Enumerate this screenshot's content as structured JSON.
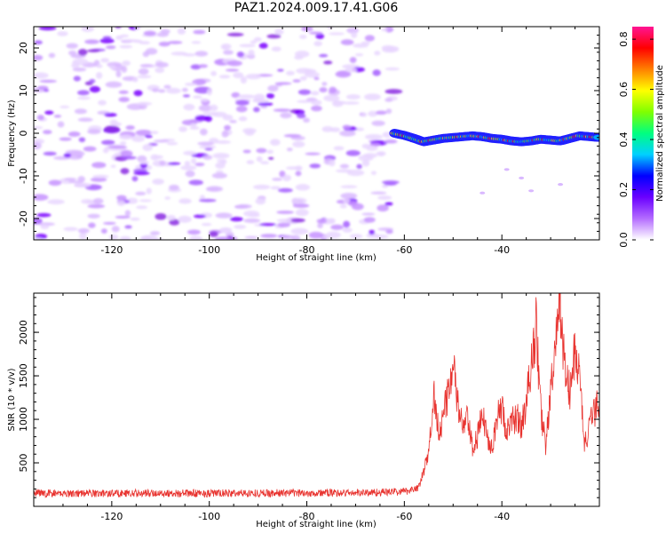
{
  "title": "PAZ1.2024.009.17.41.G06",
  "chart_data": [
    {
      "type": "heatmap",
      "name": "spectrogram",
      "xlabel": "Height of straight line (km)",
      "ylabel": "Frequency (Hz)",
      "xlim": [
        -136,
        -20
      ],
      "ylim": [
        -25,
        25
      ],
      "xticks": [
        -120,
        -100,
        -80,
        -60,
        -40
      ],
      "yticks": [
        -20,
        -10,
        0,
        10,
        20
      ],
      "noise_region_x": [
        -136,
        -62
      ],
      "signal_track": {
        "x": [
          -62,
          -60,
          -58,
          -56,
          -54,
          -52,
          -50,
          -48,
          -46,
          -44,
          -42,
          -40,
          -38,
          -36,
          -34,
          -32,
          -30,
          -28,
          -26,
          -24,
          -22,
          -20
        ],
        "y": [
          0,
          -0.5,
          -1.2,
          -2,
          -1.6,
          -1.2,
          -1,
          -0.8,
          -0.6,
          -0.8,
          -1.2,
          -1.4,
          -1.8,
          -2,
          -1.8,
          -1.4,
          -1.6,
          -1.8,
          -1.2,
          -0.6,
          -0.8,
          -1
        ]
      },
      "colorbar": {
        "label": "Normalized spectral amplitude",
        "ticks": [
          0.0,
          0.2,
          0.4,
          0.6,
          0.8
        ],
        "range": [
          0,
          0.85
        ],
        "colors": [
          "#ffffff",
          "#b46cff",
          "#6a00ff",
          "#0000ff",
          "#00d0ff",
          "#00ff80",
          "#80ff00",
          "#ffff00",
          "#ff8000",
          "#ff0000",
          "#ff1493"
        ]
      }
    },
    {
      "type": "line",
      "name": "snr",
      "xlabel": "Height of straight line (km)",
      "ylabel": "SNR (10 * v/v)",
      "xlim": [
        -136,
        -20
      ],
      "ylim": [
        0,
        2450
      ],
      "xticks": [
        -120,
        -100,
        -80,
        -60,
        -40
      ],
      "yticks": [
        500,
        1000,
        1500,
        2000
      ],
      "color": "#e8332f",
      "envelope": {
        "x": [
          -136,
          -100,
          -70,
          -60,
          -57,
          -55,
          -54,
          -53,
          -52,
          -51,
          -50,
          -49,
          -48,
          -47,
          -46,
          -45,
          -44,
          -43,
          -42,
          -41,
          -40,
          -39,
          -38,
          -37,
          -36,
          -35,
          -34,
          -33,
          -32,
          -31,
          -30,
          -29,
          -28,
          -27,
          -26,
          -25,
          -24,
          -23,
          -22,
          -21,
          -20
        ],
        "y": [
          150,
          150,
          155,
          170,
          220,
          600,
          1300,
          900,
          1000,
          1350,
          1600,
          1150,
          900,
          1000,
          650,
          800,
          1050,
          800,
          700,
          1000,
          1150,
          850,
          950,
          1050,
          900,
          1200,
          1600,
          2100,
          1100,
          700,
          1300,
          1800,
          2380,
          1500,
          1300,
          1800,
          1450,
          700,
          900,
          1100,
          1200
        ]
      }
    }
  ]
}
